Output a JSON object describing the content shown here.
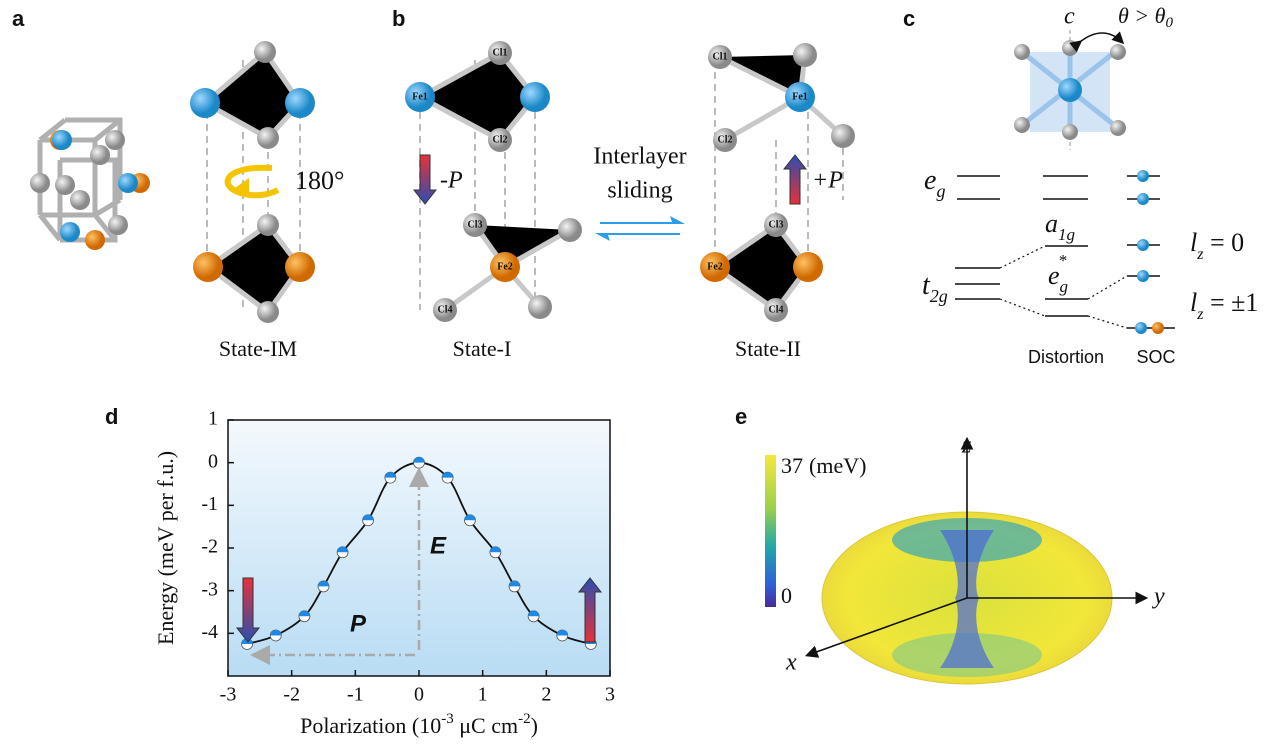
{
  "panel_labels": [
    "a",
    "b",
    "c",
    "d",
    "e"
  ],
  "panel_a": {
    "rotation": "180°",
    "caption": "State-IM"
  },
  "panel_b": {
    "state1": {
      "atoms": [
        "Cl1",
        "Fe1",
        "Cl2",
        "Cl3",
        "Fe2",
        "Cl4"
      ],
      "arrow": "-P",
      "caption": "State-I"
    },
    "middle": [
      "Interlayer",
      "sliding"
    ],
    "state2": {
      "atoms": [
        "Cl1",
        "Fe1",
        "Cl2",
        "Cl3",
        "Fe2",
        "Cl4"
      ],
      "arrow": "+P",
      "caption": "State-II"
    }
  },
  "panel_c": {
    "axis": "c",
    "angle": [
      "θ > θ",
      "0"
    ],
    "eg": [
      "e",
      "g"
    ],
    "t2g": [
      "t",
      "2g"
    ],
    "a1g": [
      "a",
      "1g"
    ],
    "eg_star": [
      "e",
      "g",
      "*"
    ],
    "lz0": [
      "l",
      "z",
      " = 0"
    ],
    "lz1": [
      "l",
      "z",
      " = ±1"
    ],
    "distortion": "Distortion",
    "soc": "SOC"
  },
  "chart_data": {
    "type": "line",
    "ylabel": "Energy (meV per f.u.)",
    "xlabel": [
      "Polarization (10",
      "-3",
      " μC cm",
      "-2",
      ")"
    ],
    "x": [
      -2.7,
      -2.25,
      -1.8,
      -1.5,
      -1.2,
      -0.8,
      -0.45,
      0,
      0.45,
      0.8,
      1.2,
      1.5,
      1.8,
      2.25,
      2.7
    ],
    "values": [
      -4.25,
      -4.05,
      -3.6,
      -2.9,
      -2.1,
      -1.35,
      -0.35,
      0,
      -0.35,
      -1.35,
      -2.1,
      -2.9,
      -3.6,
      -4.05,
      -4.25
    ],
    "color": "#1e88e5",
    "xlim": [
      -3,
      3
    ],
    "ylim": [
      -5,
      1
    ],
    "xticks": [
      -3,
      -2,
      -1,
      0,
      1,
      2,
      3
    ],
    "yticks": [
      1,
      0,
      -1,
      -2,
      -3,
      -4
    ],
    "annotations": [
      "P",
      "E"
    ]
  },
  "panel_e": {
    "colorbar": {
      "max": 37,
      "unit": "(meV)",
      "min": 0
    },
    "axes": [
      "z",
      "y",
      "x"
    ]
  }
}
